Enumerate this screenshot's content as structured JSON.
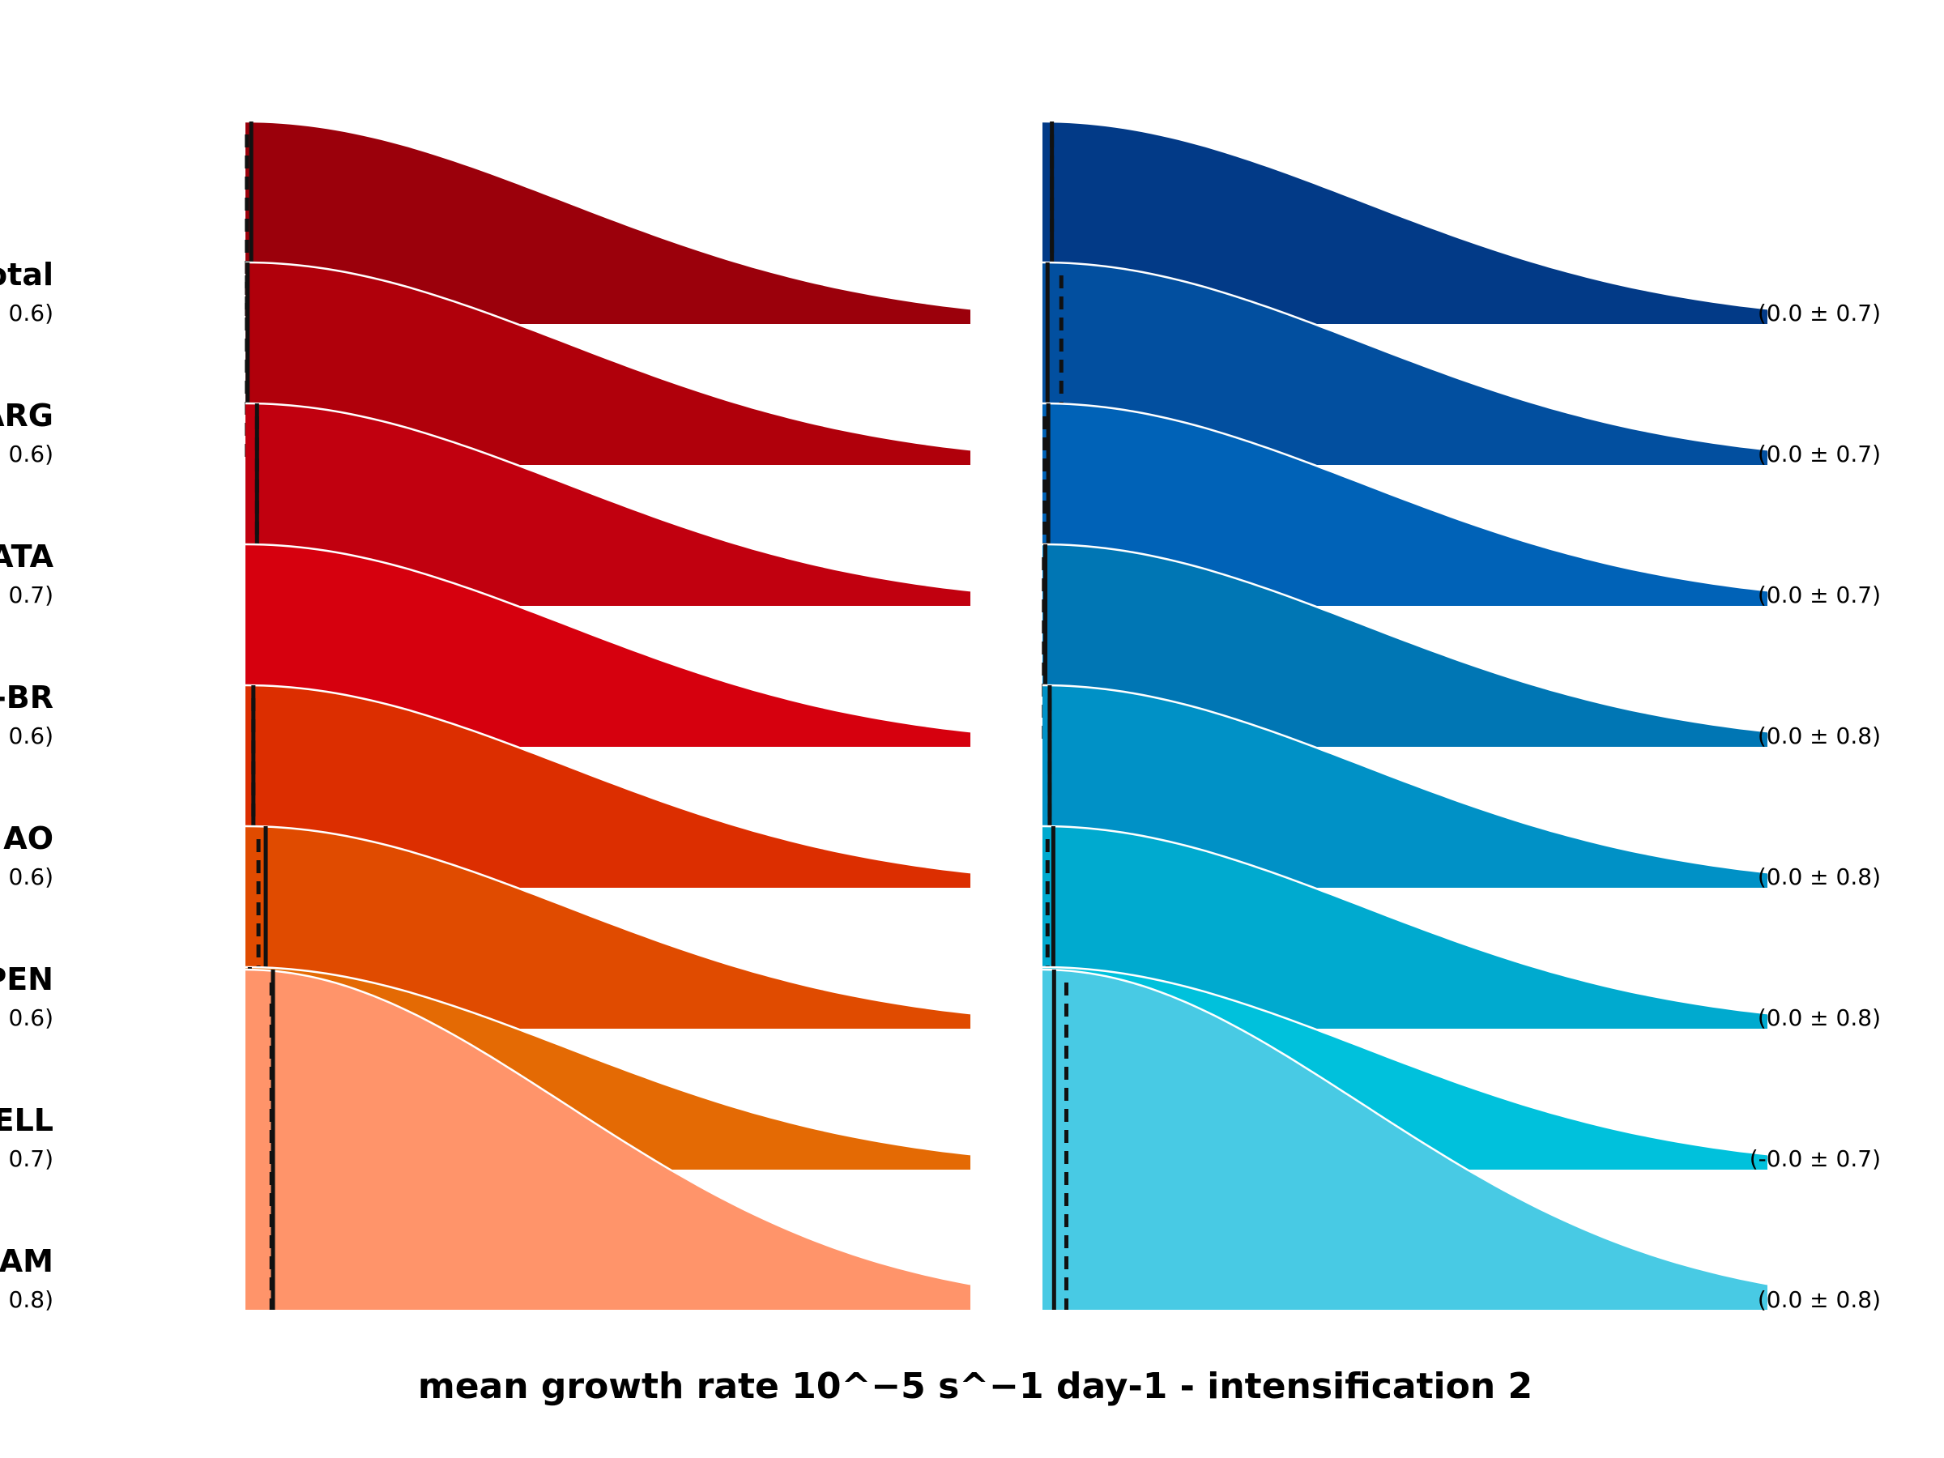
{
  "chart_data": {
    "type": "area",
    "xlabel": "mean growth rate 10^−5 s^−1 day-1 - intensification 2",
    "panels": [
      {
        "name": "left",
        "rows": [
          {
            "label": "otal",
            "stat": "0.6)",
            "color": "#9b000b",
            "mean_offset": 0.008,
            "median_offset": 0.002
          },
          {
            "label": "ARG",
            "stat": "0.6)",
            "color": "#b0000b",
            "mean_offset": 0.003,
            "median_offset": 0.002
          },
          {
            "label": "ATA",
            "stat": "0.7)",
            "color": "#c1000f",
            "mean_offset": 0.016,
            "median_offset": 0.016
          },
          {
            "label": "-BR",
            "stat": "0.6)",
            "color": "#d6000e",
            "mean_offset": null,
            "median_offset": null
          },
          {
            "label": "AO",
            "stat": "0.6)",
            "color": "#dc2e00",
            "mean_offset": 0.011,
            "median_offset": 0.011
          },
          {
            "label": "PEN",
            "stat": "0.6)",
            "color": "#e04b00",
            "mean_offset": 0.028,
            "median_offset": 0.018
          },
          {
            "label": "ELL",
            "stat": "0.7)",
            "color": "#e46a04",
            "mean_offset": 0.006,
            "median_offset": 0.006
          },
          {
            "label": "AM",
            "stat": "0.8)",
            "color": "#ff946a",
            "mean_offset": 0.038,
            "median_offset": 0.036
          }
        ]
      },
      {
        "name": "right",
        "rows": [
          {
            "stat": "(0.0 ± 0.7)",
            "color": "#023a87",
            "mean_offset": 0.013,
            "median_offset": 0.013
          },
          {
            "stat": "(0.0 ± 0.7)",
            "color": "#024f9f",
            "mean_offset": 0.007,
            "median_offset": 0.026
          },
          {
            "stat": "(0.0 ± 0.7)",
            "color": "#0062b7",
            "mean_offset": 0.008,
            "median_offset": 0.003
          },
          {
            "stat": "(0.0 ± 0.8)",
            "color": "#0076b4",
            "mean_offset": 0.004,
            "median_offset": 0.002
          },
          {
            "stat": "(0.0 ± 0.8)",
            "color": "#0091c6",
            "mean_offset": 0.01,
            "median_offset": 0.01
          },
          {
            "stat": "(0.0 ± 0.8)",
            "color": "#00aacf",
            "mean_offset": 0.015,
            "median_offset": 0.007
          },
          {
            "stat": "(-0.0 ± 0.7)",
            "color": "#00c1dc",
            "mean_offset": null,
            "median_offset": null
          },
          {
            "stat": "(0.0 ± 0.8)",
            "color": "#48cae4",
            "mean_offset": 0.016,
            "median_offset": 0.033
          }
        ]
      }
    ]
  }
}
